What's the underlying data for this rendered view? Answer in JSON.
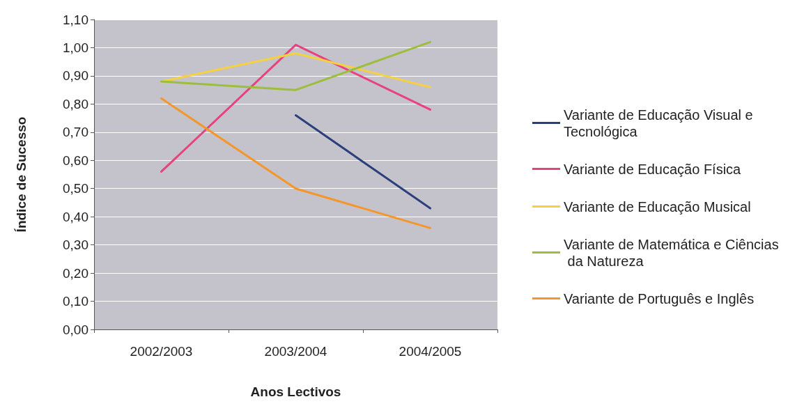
{
  "chart_data": {
    "type": "line",
    "xlabel": "Anos Lectivos",
    "ylabel": "Índice de Sucesso",
    "categories": [
      "2002/2003",
      "2003/2004",
      "2004/2005"
    ],
    "series": [
      {
        "name": "Variante de Educação Visual e Tecnológica",
        "color": "#2b3f7a",
        "values": [
          null,
          0.76,
          0.43
        ]
      },
      {
        "name": "Variante de Educação Física",
        "color": "#e8427c",
        "values": [
          0.56,
          1.01,
          0.78
        ]
      },
      {
        "name": "Variante de Educação Musical",
        "color": "#f5d040",
        "values": [
          0.88,
          0.98,
          0.86
        ]
      },
      {
        "name": "Variante de Matemática e Ciências da Natureza",
        "color": "#9cbe3c",
        "values": [
          0.88,
          0.85,
          1.02
        ]
      },
      {
        "name": "Variante de Português e Inglês",
        "color": "#f5962a",
        "values": [
          0.82,
          0.5,
          0.36
        ]
      }
    ],
    "ylim": [
      0,
      1.1
    ],
    "yticks": [
      {
        "value": 0,
        "label": "0,00"
      },
      {
        "value": 0.1,
        "label": "0,10"
      },
      {
        "value": 0.2,
        "label": "0,20"
      },
      {
        "value": 0.3,
        "label": "0,30"
      },
      {
        "value": 0.4,
        "label": "0,40"
      },
      {
        "value": 0.5,
        "label": "0,50"
      },
      {
        "value": 0.6,
        "label": "0,60"
      },
      {
        "value": 0.7,
        "label": "0,70"
      },
      {
        "value": 0.8,
        "label": "0,80"
      },
      {
        "value": 0.9,
        "label": "0,90"
      },
      {
        "value": 1.0,
        "label": "1,00"
      },
      {
        "value": 1.1,
        "label": "1,10"
      }
    ],
    "grid": "y",
    "legend": "right",
    "marker": "none",
    "line_style": "solid"
  }
}
